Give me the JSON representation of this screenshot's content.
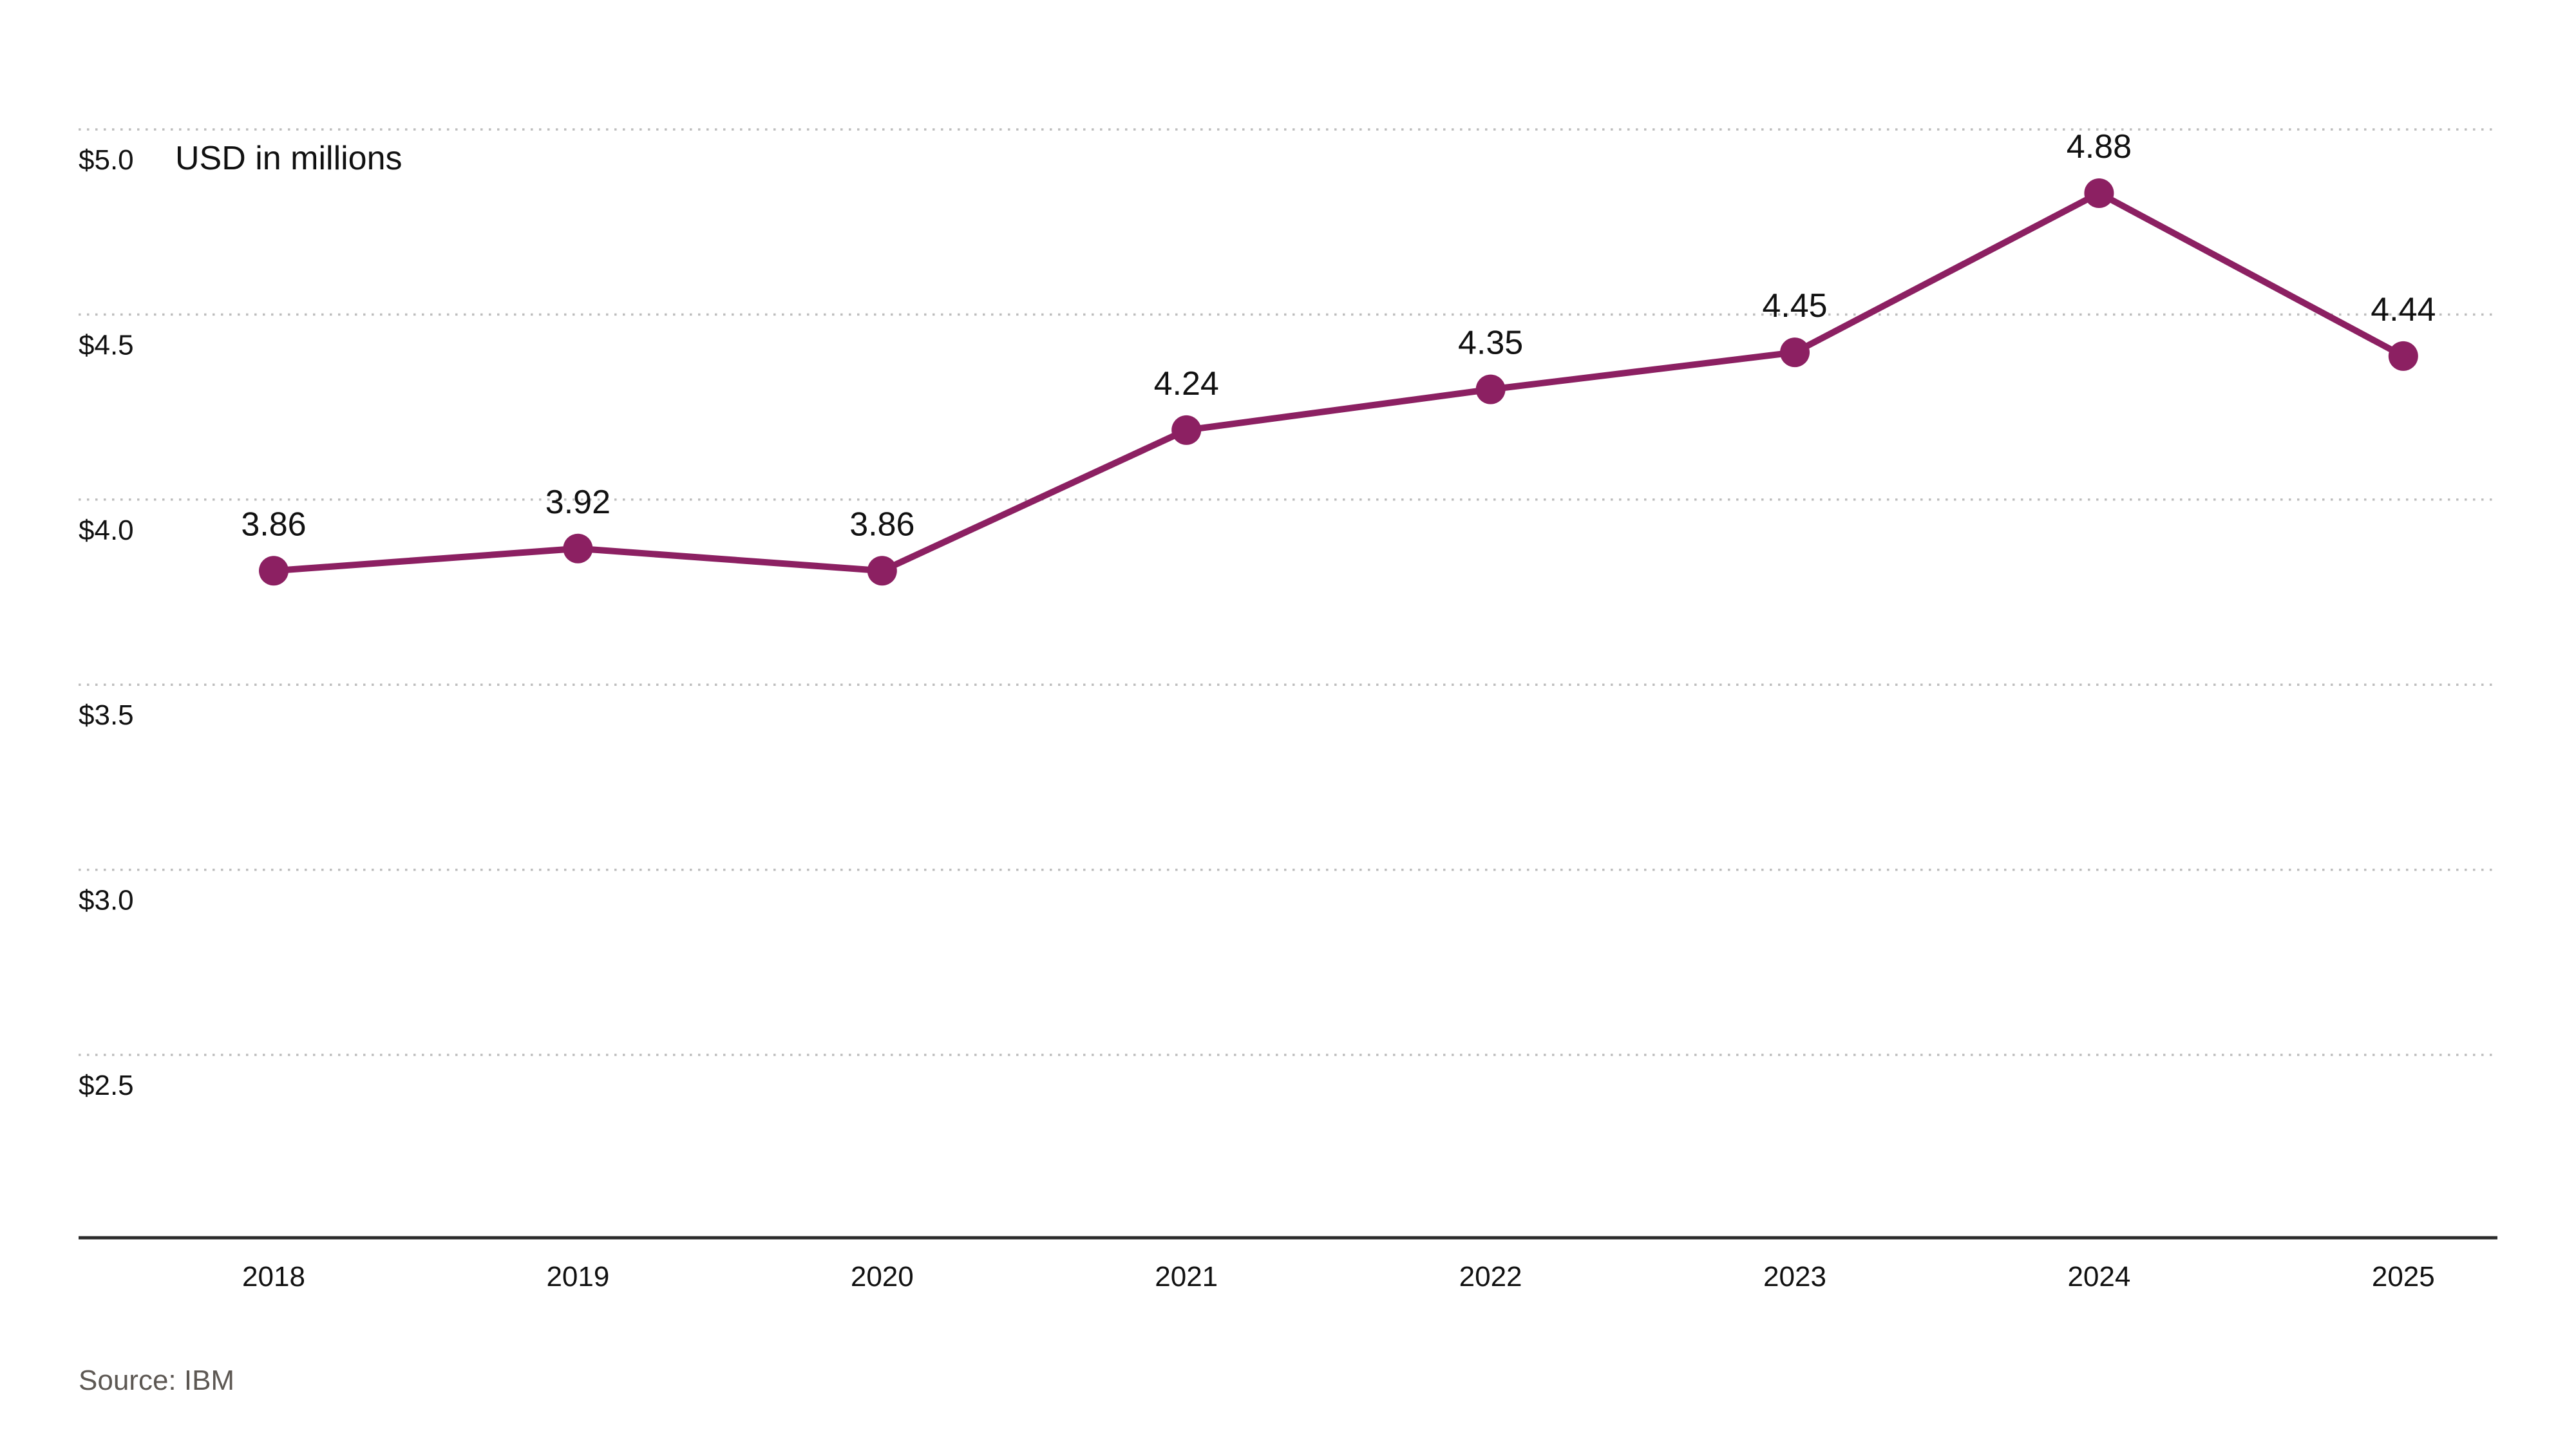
{
  "chart_data": {
    "type": "line",
    "title": "USD in millions",
    "source": "Source: IBM",
    "categories": [
      "2018",
      "2019",
      "2020",
      "2021",
      "2022",
      "2023",
      "2024",
      "2025"
    ],
    "values": [
      3.86,
      3.92,
      3.86,
      4.24,
      4.35,
      4.45,
      4.88,
      4.44
    ],
    "value_labels": [
      "3.86",
      "3.92",
      "3.86",
      "4.24",
      "4.35",
      "4.45",
      "4.88",
      "4.44"
    ],
    "xlabel": "",
    "ylabel": "USD in millions",
    "ylim": [
      2.0,
      5.15
    ],
    "y_axis": {
      "ticks": [
        {
          "value": 5.0,
          "label": "$5.0"
        },
        {
          "value": 4.5,
          "label": "$4.5"
        },
        {
          "value": 4.0,
          "label": "$4.0"
        },
        {
          "value": 3.5,
          "label": "$3.5"
        },
        {
          "value": 3.0,
          "label": "$3.0"
        },
        {
          "value": 2.5,
          "label": "$2.5"
        }
      ]
    },
    "grid": "horizontal-dotted",
    "legend": "none",
    "colors": {
      "series": "#8C2062",
      "gridline": "#bdbdbd",
      "axis_line": "#2b2b2b",
      "label_text": "#111111",
      "source_text": "#5d5853",
      "background": "#ffffff"
    }
  }
}
